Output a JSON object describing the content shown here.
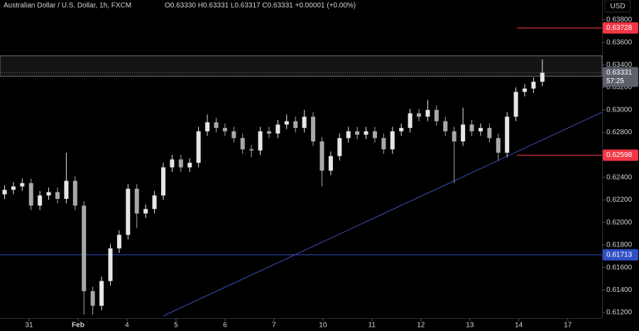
{
  "chart_data": {
    "type": "candlestick",
    "title": "Australian Dollar / U.S. Dollar, 1h, FXCM",
    "subtitle": "O0.63330  H0.63331  L0.63317  C0.63331  +0.00001 (+0.00%)",
    "currency": "USD",
    "up_color": "#e6e6e6",
    "down_color": "#a8a8a8",
    "xlim": [
      -0.594,
      11.7
    ],
    "xticks": [
      {
        "value": 0,
        "label": "31"
      },
      {
        "value": 1,
        "label": "Feb"
      },
      {
        "value": 2,
        "label": "4"
      },
      {
        "value": 3,
        "label": "5"
      },
      {
        "value": 4,
        "label": "6"
      },
      {
        "value": 5,
        "label": "7"
      },
      {
        "value": 6,
        "label": "10"
      },
      {
        "value": 7,
        "label": "11"
      },
      {
        "value": 8,
        "label": "12"
      },
      {
        "value": 9,
        "label": "13"
      },
      {
        "value": 10,
        "label": "14"
      },
      {
        "value": 11,
        "label": "17"
      }
    ],
    "ylim": [
      0.612,
      0.638
    ],
    "yticks": [
      {
        "value": 0.638,
        "label": "0.63800"
      },
      {
        "value": 0.636,
        "label": "0.63600"
      },
      {
        "value": 0.634,
        "label": "0.63400"
      },
      {
        "value": 0.632,
        "label": "0.63200"
      },
      {
        "value": 0.63,
        "label": "0.63000"
      },
      {
        "value": 0.628,
        "label": "0.62800"
      },
      {
        "value": 0.624,
        "label": "0.62400"
      },
      {
        "value": 0.622,
        "label": "0.62200"
      },
      {
        "value": 0.62,
        "label": "0.62000"
      },
      {
        "value": 0.618,
        "label": "0.61800"
      },
      {
        "value": 0.616,
        "label": "0.61600"
      },
      {
        "value": 0.614,
        "label": "0.61400"
      },
      {
        "value": 0.612,
        "label": "0.61200"
      }
    ],
    "x": [
      -0.5,
      -0.32,
      -0.14,
      0.04,
      0.22,
      0.4,
      0.58,
      0.76,
      0.94,
      1.12,
      1.3,
      1.48,
      1.66,
      1.84,
      2.02,
      2.2,
      2.38,
      2.56,
      2.74,
      2.92,
      3.1,
      3.28,
      3.46,
      3.64,
      3.82,
      4,
      4.18,
      4.36,
      4.54,
      4.72,
      4.9,
      5.08,
      5.26,
      5.44,
      5.62,
      5.8,
      5.98,
      6.16,
      6.34,
      6.52,
      6.7,
      6.88,
      7.06,
      7.24,
      7.42,
      7.6,
      7.78,
      7.96,
      8.14,
      8.32,
      8.5,
      8.68,
      8.86,
      9.04,
      9.22,
      9.4,
      9.58,
      9.76,
      9.94,
      10.12,
      10.3,
      10.48
    ],
    "open": [
      0.6225,
      0.6229,
      0.6232,
      0.6235,
      0.6215,
      0.6224,
      0.6227,
      0.6221,
      0.6237,
      0.6215,
      0.6139,
      0.6126,
      0.6148,
      0.6177,
      0.6189,
      0.623,
      0.6208,
      0.6212,
      0.6224,
      0.6249,
      0.6256,
      0.6249,
      0.6253,
      0.6281,
      0.6289,
      0.6284,
      0.6281,
      0.6275,
      0.6265,
      0.6264,
      0.6281,
      0.6279,
      0.6287,
      0.629,
      0.6284,
      0.6294,
      0.6272,
      0.6246,
      0.6259,
      0.6275,
      0.6281,
      0.6278,
      0.6281,
      0.6275,
      0.6265,
      0.6281,
      0.6284,
      0.6297,
      0.6294,
      0.63,
      0.629,
      0.6281,
      0.6272,
      0.6287,
      0.6281,
      0.6284,
      0.6275,
      0.6262,
      0.6294,
      0.6316,
      0.6319,
      0.6325
    ],
    "high": [
      0.6233,
      0.6236,
      0.6239,
      0.6239,
      0.6228,
      0.6231,
      0.6231,
      0.6262,
      0.6241,
      0.6219,
      0.6143,
      0.6152,
      0.6181,
      0.6193,
      0.6234,
      0.6234,
      0.6216,
      0.6228,
      0.6253,
      0.626,
      0.626,
      0.6257,
      0.6285,
      0.6296,
      0.6293,
      0.6288,
      0.6285,
      0.6279,
      0.6269,
      0.6285,
      0.6285,
      0.6291,
      0.6296,
      0.6294,
      0.63,
      0.6298,
      0.6276,
      0.6263,
      0.6279,
      0.6285,
      0.6285,
      0.6285,
      0.6285,
      0.6279,
      0.6285,
      0.6288,
      0.6301,
      0.6301,
      0.6309,
      0.6304,
      0.6294,
      0.6285,
      0.6302,
      0.6291,
      0.6288,
      0.6288,
      0.6279,
      0.6298,
      0.632,
      0.6323,
      0.6329,
      0.6345
    ],
    "low": [
      0.6221,
      0.6225,
      0.6228,
      0.6211,
      0.6211,
      0.622,
      0.6217,
      0.6217,
      0.6211,
      0.6118,
      0.6118,
      0.6122,
      0.6144,
      0.6173,
      0.6185,
      0.6195,
      0.6204,
      0.6208,
      0.622,
      0.6245,
      0.6245,
      0.6245,
      0.6249,
      0.6277,
      0.628,
      0.6277,
      0.6271,
      0.6261,
      0.6258,
      0.626,
      0.6275,
      0.6275,
      0.6283,
      0.628,
      0.628,
      0.6268,
      0.6232,
      0.6242,
      0.6255,
      0.6271,
      0.6274,
      0.6274,
      0.6271,
      0.6261,
      0.6261,
      0.6277,
      0.628,
      0.629,
      0.629,
      0.6286,
      0.6277,
      0.6235,
      0.6268,
      0.6277,
      0.6277,
      0.6271,
      0.6255,
      0.6258,
      0.629,
      0.6312,
      0.6315,
      0.6321
    ],
    "close": [
      0.6229,
      0.6232,
      0.6235,
      0.6215,
      0.6224,
      0.6227,
      0.6221,
      0.6237,
      0.6215,
      0.6139,
      0.6126,
      0.6148,
      0.6177,
      0.6189,
      0.623,
      0.6208,
      0.6212,
      0.6224,
      0.6249,
      0.6256,
      0.6249,
      0.6253,
      0.6281,
      0.6289,
      0.6284,
      0.6281,
      0.6275,
      0.6265,
      0.6264,
      0.6281,
      0.6279,
      0.6287,
      0.629,
      0.6284,
      0.6294,
      0.6272,
      0.6246,
      0.6259,
      0.6275,
      0.6281,
      0.6278,
      0.6281,
      0.6275,
      0.6265,
      0.6281,
      0.6284,
      0.6297,
      0.6294,
      0.63,
      0.629,
      0.6281,
      0.6272,
      0.6287,
      0.6281,
      0.6284,
      0.6275,
      0.6262,
      0.6294,
      0.6316,
      0.6319,
      0.6325,
      0.63331
    ],
    "zone": [
      0.633,
      0.6348
    ],
    "trendline": {
      "x": [
        2.74,
        11.7
      ],
      "y": [
        0.6117,
        0.6298
      ],
      "color": "#3f4fb8"
    },
    "levels": [
      {
        "value": 0.63728,
        "start": 9.96,
        "color": "#f23645"
      },
      {
        "value": 0.62598,
        "start": 9.96,
        "color": "#f23645"
      },
      {
        "value": 0.61713,
        "start": -0.594,
        "color": "#2f4fc4"
      }
    ],
    "last_price": {
      "value": 0.63331,
      "countdown": "57:25",
      "color": "#5d606b"
    }
  }
}
